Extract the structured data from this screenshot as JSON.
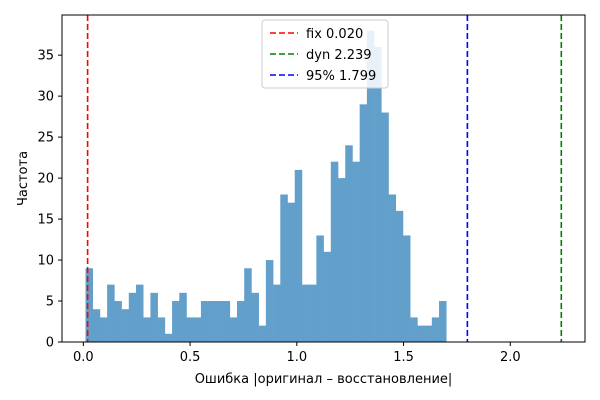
{
  "chart_data": {
    "type": "bar",
    "subtype": "histogram",
    "xlabel": "Ошибка |оригинал – восстановление|",
    "ylabel": "Частота",
    "xlim": [
      -0.1,
      2.35
    ],
    "ylim": [
      0,
      39.9
    ],
    "x_ticks": [
      0.0,
      0.5,
      1.0,
      1.5,
      2.0
    ],
    "x_tick_labels": [
      "0.0",
      "0.5",
      "1.0",
      "1.5",
      "2.0"
    ],
    "y_ticks": [
      0,
      5,
      10,
      15,
      20,
      25,
      30,
      35
    ],
    "y_tick_labels": [
      "0",
      "5",
      "10",
      "15",
      "20",
      "25",
      "30",
      "35"
    ],
    "grid": false,
    "bar_color": "#62a0cb",
    "bins_start": 0.01,
    "bin_width": 0.0338,
    "counts": [
      9,
      4,
      3,
      7,
      5,
      4,
      6,
      7,
      3,
      6,
      3,
      1,
      5,
      6,
      3,
      3,
      5,
      5,
      5,
      5,
      3,
      5,
      9,
      6,
      2,
      10,
      7,
      18,
      17,
      21,
      7,
      7,
      13,
      11,
      22,
      20,
      24,
      22,
      29,
      38,
      36,
      28,
      18,
      16,
      13,
      3,
      2,
      2,
      3,
      5
    ],
    "vlines": [
      {
        "name": "fix",
        "value": 0.02,
        "label": "fix 0.020",
        "color": "#ff0000"
      },
      {
        "name": "dyn",
        "value": 2.239,
        "label": "dyn 2.239",
        "color": "#008000"
      },
      {
        "name": "95%",
        "value": 1.799,
        "label": "95% 1.799",
        "color": "#0000ff"
      }
    ],
    "legend_position": "top-center"
  }
}
